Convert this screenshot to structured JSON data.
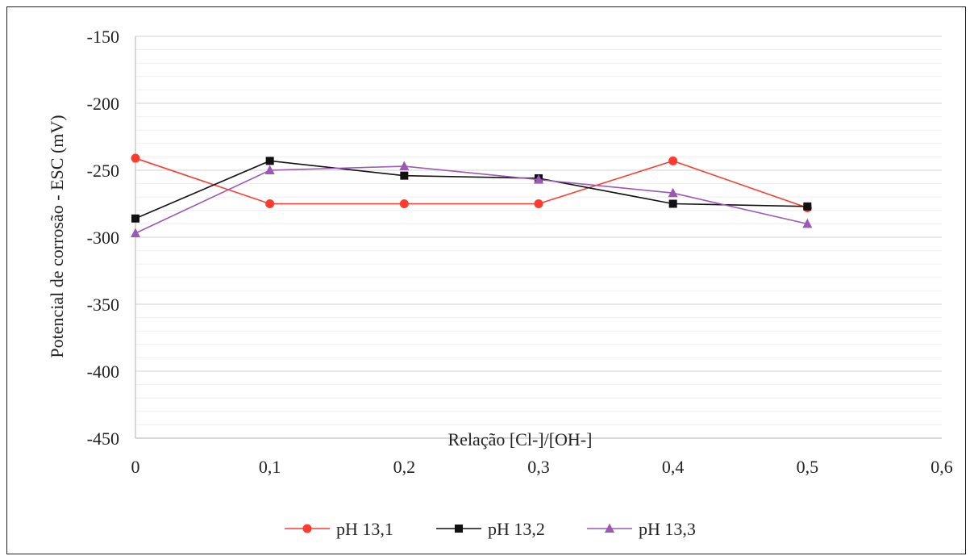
{
  "chart_data": {
    "type": "line",
    "title": "",
    "xlabel": "Relação [Cl-]/[OH-]",
    "ylabel": "Potencial de corrosão - ESC (mV)",
    "xlim": [
      0,
      0.6
    ],
    "ylim": [
      -450,
      -150
    ],
    "x_ticks": [
      "0",
      "0,1",
      "0,2",
      "0,3",
      "0,4",
      "0,5",
      "0,6"
    ],
    "y_ticks": [
      "-150",
      "-200",
      "-250",
      "-300",
      "-350",
      "-400",
      "-450"
    ],
    "grid": true,
    "legend_position": "bottom",
    "x": [
      0,
      0.1,
      0.2,
      0.3,
      0.4,
      0.5
    ],
    "series": [
      {
        "name": "pH 13,1",
        "color": "#ff3b30",
        "marker": "circle",
        "values": [
          -241,
          -275,
          -275,
          -275,
          -243,
          -278
        ]
      },
      {
        "name": "pH 13,2",
        "color": "#111111",
        "marker": "square",
        "values": [
          -286,
          -243,
          -254,
          -256,
          -275,
          -277
        ]
      },
      {
        "name": "pH 13,3",
        "color": "#9b59b6",
        "marker": "triangle",
        "values": [
          -297,
          -250,
          -247,
          -257,
          -267,
          -290
        ]
      }
    ]
  }
}
